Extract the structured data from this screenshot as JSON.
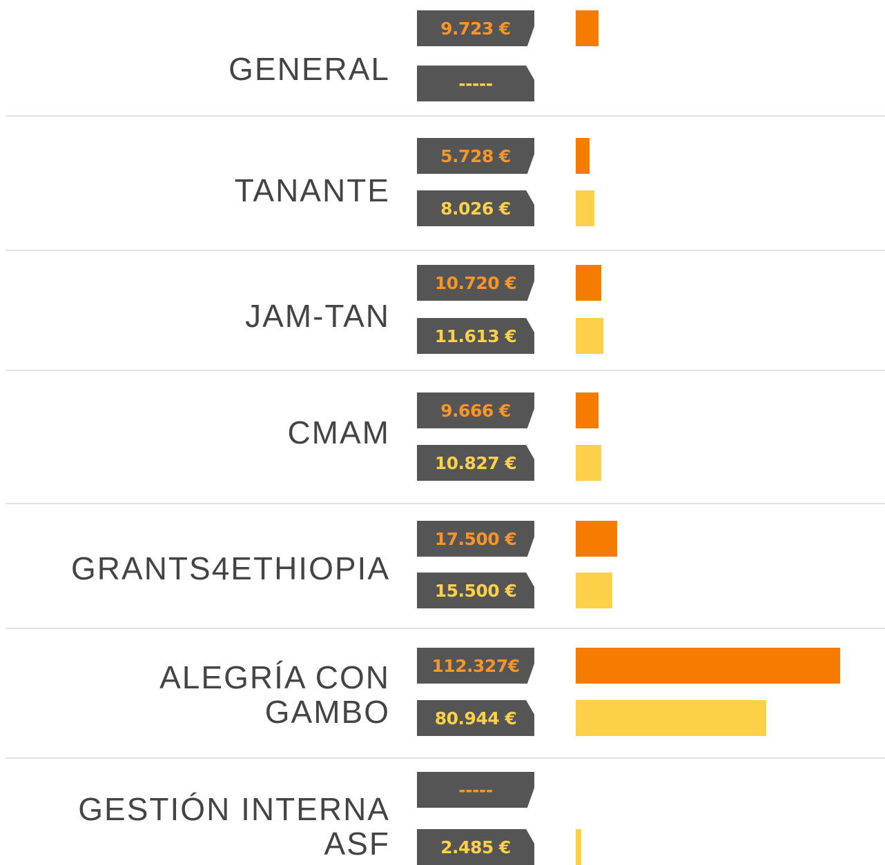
{
  "chart_data": {
    "type": "bar",
    "orientation": "horizontal",
    "categories": [
      "GENERAL",
      "TANANTE",
      "JAM-TAN",
      "CMAM",
      "GRANTS4ETHIOPIA",
      "ALEGRÍA CON GAMBO",
      "GESTIÓN INTERNA ASF"
    ],
    "series": [
      {
        "color": "#f57c00",
        "label_color": "#f7952a",
        "values": [
          9723,
          5728,
          10720,
          9666,
          17500,
          112327,
          null
        ],
        "value_labels": [
          "9.723 €",
          "5.728 €",
          "10.720 €",
          "9.666 €",
          "17.500 €",
          "112.327€",
          "-----"
        ]
      },
      {
        "color": "#fdd04a",
        "label_color": "#fdd04a",
        "values": [
          null,
          8026,
          11613,
          10827,
          15500,
          80944,
          2485
        ],
        "value_labels": [
          "-----",
          "8.026 €",
          "11.613 €",
          "10.827 €",
          "15.500 €",
          "80.944 €",
          "2.485 €"
        ]
      }
    ]
  }
}
